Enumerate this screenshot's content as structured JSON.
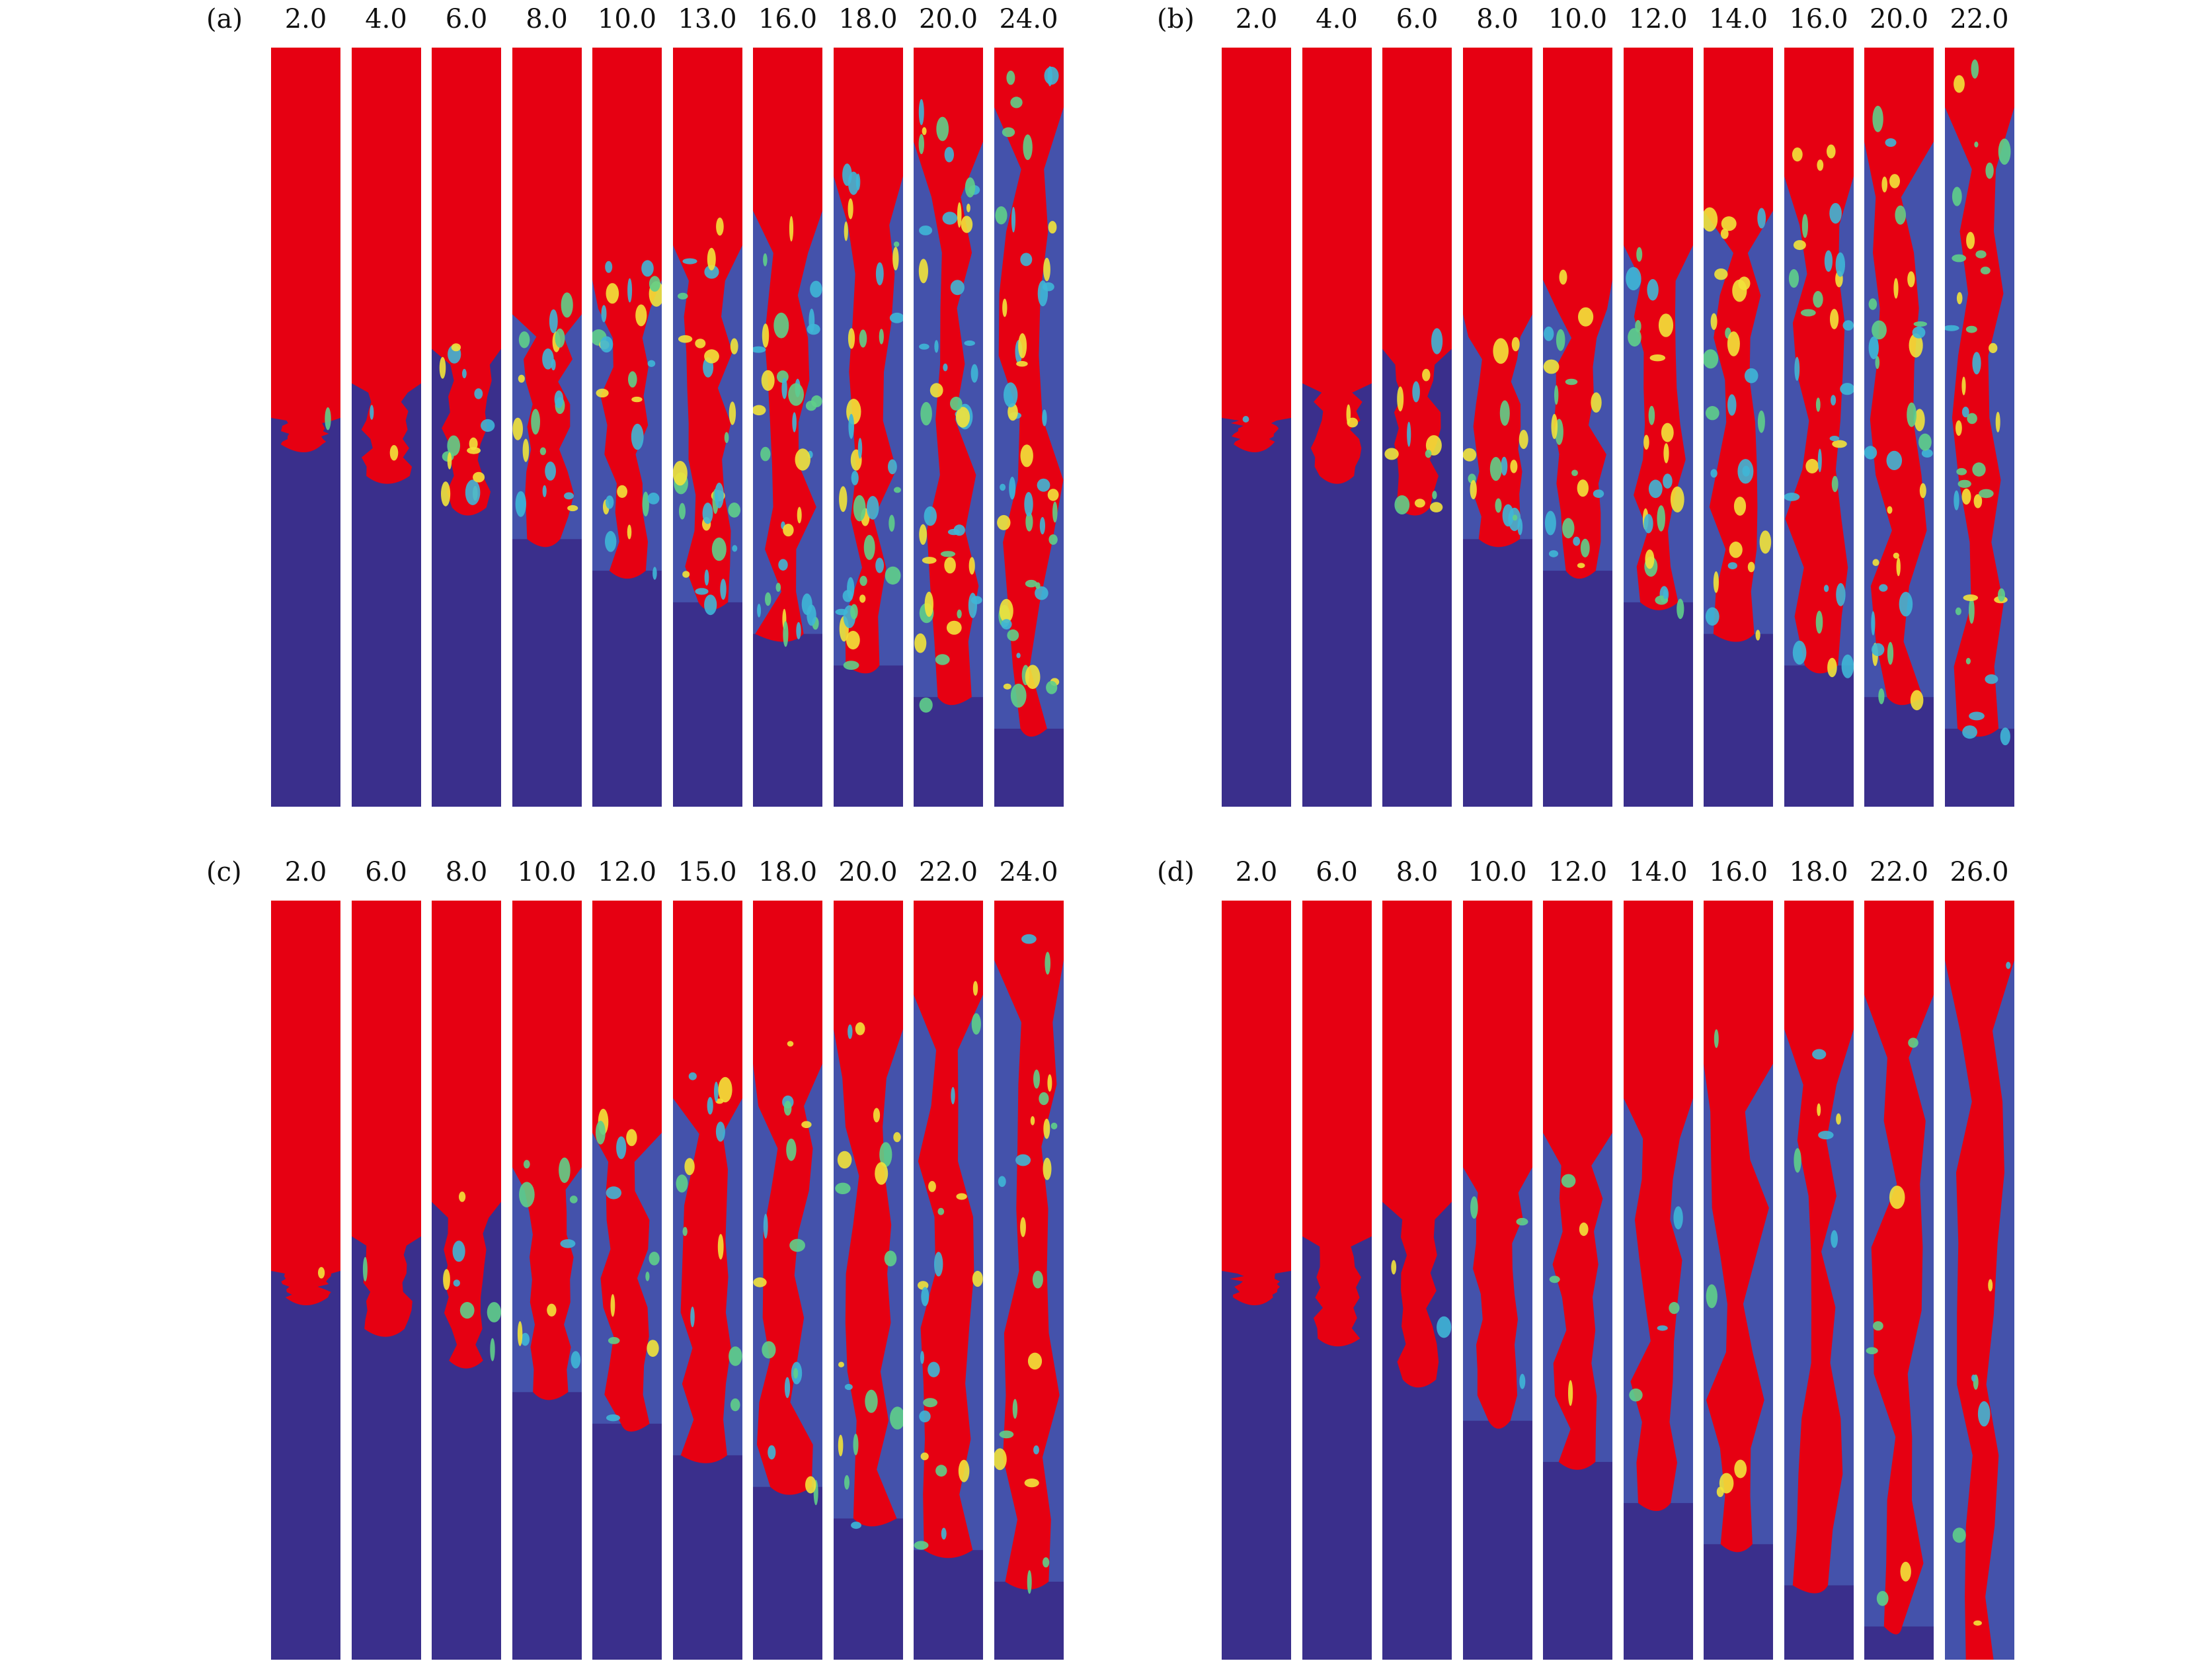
{
  "figure": {
    "panels": [
      {
        "id": "a",
        "label": "(a)",
        "times": [
          "2.0",
          "4.0",
          "6.0",
          "8.0",
          "10.0",
          "13.0",
          "16.0",
          "18.0",
          "20.0",
          "24.0"
        ]
      },
      {
        "id": "b",
        "label": "(b)",
        "times": [
          "2.0",
          "4.0",
          "6.0",
          "8.0",
          "10.0",
          "12.0",
          "14.0",
          "16.0",
          "20.0",
          "22.0"
        ]
      },
      {
        "id": "c",
        "label": "(c)",
        "times": [
          "2.0",
          "6.0",
          "8.0",
          "10.0",
          "12.0",
          "15.0",
          "18.0",
          "20.0",
          "22.0",
          "24.0"
        ]
      },
      {
        "id": "d",
        "label": "(d)",
        "times": [
          "2.0",
          "6.0",
          "8.0",
          "10.0",
          "12.0",
          "14.0",
          "16.0",
          "18.0",
          "22.0",
          "26.0"
        ]
      }
    ],
    "colors": {
      "heavy": "#e60012",
      "light": "#3a2f8c",
      "mixed_yellow": "#f2e33a",
      "mixed_green": "#5fcf8a",
      "mixed_cyan": "#3fb6d6",
      "mixed_blue": "#4d6fc4"
    }
  }
}
